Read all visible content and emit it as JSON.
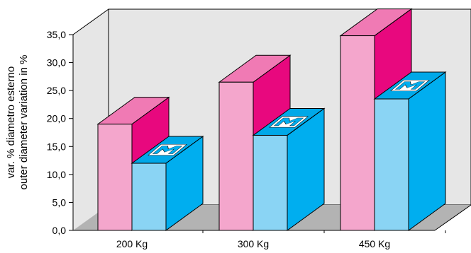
{
  "chart_data": {
    "type": "bar",
    "categories": [
      "200 Kg",
      "300 Kg",
      "450 Kg"
    ],
    "series": [
      {
        "values": [
          19.0,
          26.5,
          34.8
        ]
      },
      {
        "values": [
          12.0,
          17.0,
          23.5
        ]
      }
    ],
    "ylabel": [
      "var. % diametro esterno",
      "outer diameter variation in %"
    ],
    "yticks": [
      "0,0",
      "5,0",
      "10,0",
      "15,0",
      "20,0",
      "25,0",
      "30,0",
      "35,0"
    ],
    "ylim": [
      0,
      35
    ],
    "grid": false,
    "style": "3d"
  },
  "colors": {
    "series1_front": "#f4a6cc",
    "series1_side": "#e8087e",
    "series1_top": "#f07ab4",
    "series2_front": "#8ad4f4",
    "series2_side": "#00aeef",
    "series2_top": "#00a8e8",
    "floor": "#b3b3b3",
    "wall": "#e6e6e6"
  },
  "icons": {
    "bar_top_logo": "mechanical-emblem-icon"
  }
}
